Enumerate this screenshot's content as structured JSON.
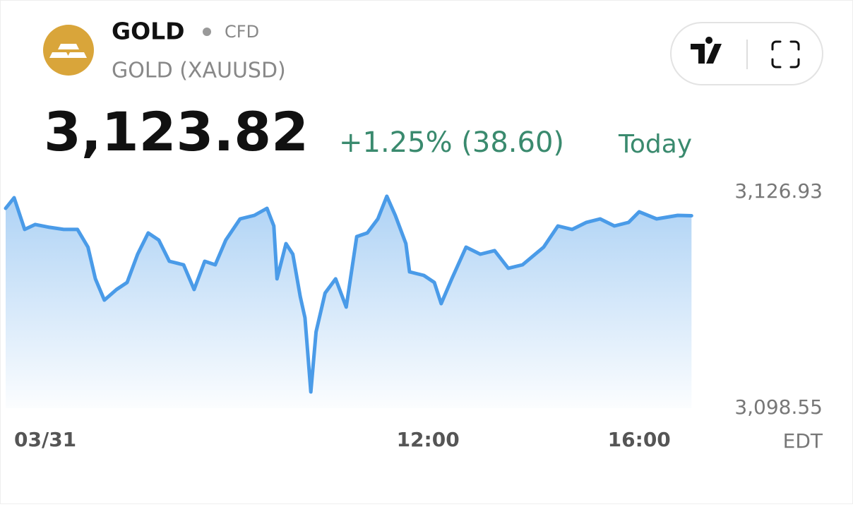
{
  "header": {
    "symbol": "GOLD",
    "instrument_type": "CFD",
    "name": "GOLD (XAUUSD)",
    "price": "3,123.82",
    "change": "+1.25% (38.60)",
    "period": "Today"
  },
  "chart_data": {
    "type": "line",
    "color": "#4a9be8",
    "x": [
      4.0,
      4.16,
      4.36,
      4.56,
      4.83,
      5.1,
      5.36,
      5.56,
      5.7,
      5.87,
      6.1,
      6.3,
      6.5,
      6.7,
      6.9,
      7.1,
      7.37,
      7.57,
      7.77,
      7.97,
      8.17,
      8.44,
      8.71,
      8.95,
      9.08,
      9.14,
      9.31,
      9.44,
      9.58,
      9.67,
      9.78,
      9.88,
      10.05,
      10.25,
      10.45,
      10.65,
      10.85,
      11.05,
      11.22,
      11.38,
      11.58,
      11.65,
      11.92,
      12.12,
      12.25,
      12.45,
      12.72,
      12.99,
      13.26,
      13.52,
      13.79,
      14.19,
      14.46,
      14.73,
      15.0,
      15.26,
      15.53,
      15.8,
      16.0,
      16.33,
      16.73,
      16.99
    ],
    "values": [
      3124.8,
      3126.19,
      3122.02,
      3122.67,
      3122.3,
      3122.02,
      3122.02,
      3119.7,
      3115.53,
      3112.74,
      3114.13,
      3115.06,
      3118.77,
      3121.56,
      3120.63,
      3117.84,
      3117.38,
      3114.13,
      3117.84,
      3117.38,
      3120.63,
      3123.41,
      3123.87,
      3124.8,
      3122.48,
      3115.53,
      3120.16,
      3118.77,
      3113.21,
      3110.42,
      3100.68,
      3108.57,
      3113.67,
      3115.53,
      3111.82,
      3121.09,
      3121.56,
      3123.41,
      3126.38,
      3123.87,
      3120.16,
      3116.45,
      3115.99,
      3115.06,
      3112.28,
      3115.53,
      3119.7,
      3118.77,
      3119.24,
      3116.92,
      3117.38,
      3119.7,
      3122.48,
      3122.02,
      3122.95,
      3123.41,
      3122.48,
      3122.95,
      3124.34,
      3123.41,
      3123.87,
      3123.82
    ],
    "xlim": [
      4,
      17
    ],
    "xticks": [
      {
        "value": 4,
        "label": "03/31"
      },
      {
        "value": 12,
        "label": "12:00"
      },
      {
        "value": 16,
        "label": "16:00"
      }
    ],
    "ylim": [
      3098.55,
      3126.93
    ],
    "yticks": [
      {
        "value": 3126.93,
        "label": "3,126.93"
      },
      {
        "value": 3098.55,
        "label": "3,098.55"
      }
    ],
    "timezone": "EDT"
  }
}
